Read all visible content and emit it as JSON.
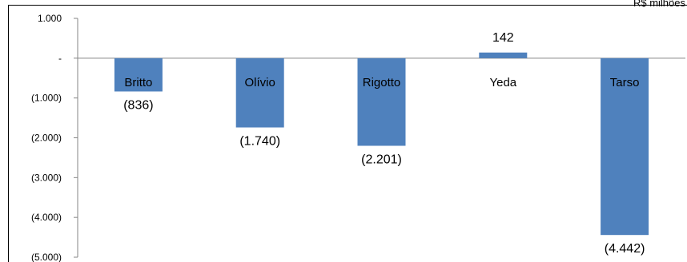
{
  "chart_data": {
    "type": "bar",
    "unit_label": "R$ milhões",
    "categories": [
      "Britto",
      "Olívio",
      "Rigotto",
      "Yeda",
      "Tarso"
    ],
    "values": [
      -836,
      -1740,
      -2201,
      142,
      -4442
    ],
    "data_labels": [
      "(836)",
      "(1.740)",
      "(2.201)",
      "142",
      "(4.442)"
    ],
    "ylim": [
      -5000,
      1000
    ],
    "yticks": [
      1000,
      0,
      -1000,
      -2000,
      -3000,
      -4000,
      -5000
    ],
    "ytick_labels": [
      "1.000",
      "-",
      "(1.000)",
      "(2.000)",
      "(3.000)",
      "(4.000)",
      "(5.000)"
    ],
    "grid": false,
    "legend": "none",
    "colors": {
      "bar": "#4F81BD",
      "axis": "#868686",
      "border": "#000000"
    }
  }
}
